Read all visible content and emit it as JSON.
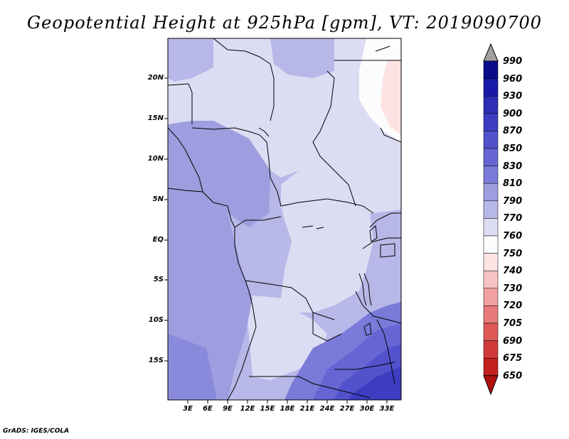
{
  "title": "Geopotential Height at 925hPa [gpm], VT: 2019090700",
  "credit": "GrADS: IGES/COLA",
  "map": {
    "lat_labels": [
      "20N",
      "15N",
      "10N",
      "5N",
      "EQ",
      "5S",
      "10S",
      "15S"
    ],
    "lon_labels": [
      "3E",
      "6E",
      "9E",
      "12E",
      "15E",
      "18E",
      "21E",
      "24E",
      "27E",
      "30E",
      "33E"
    ]
  },
  "colorbar": {
    "levels": [
      "990",
      "960",
      "930",
      "900",
      "870",
      "850",
      "830",
      "810",
      "790",
      "770",
      "760",
      "750",
      "740",
      "730",
      "720",
      "705",
      "690",
      "675",
      "650"
    ],
    "colors": [
      "#0b0b8c",
      "#1a1aa8",
      "#2d2db5",
      "#3d3dc2",
      "#5252cc",
      "#6565d4",
      "#7a7ad9",
      "#9d9ddf",
      "#b7b7e8",
      "#dcdcf3",
      "#fcfcfd",
      "#fde3e3",
      "#f8c3c3",
      "#f1a0a0",
      "#e77a7a",
      "#de5858",
      "#d23a3a",
      "#c42020",
      "#b01010"
    ],
    "top_arrow_color": "#a0a0a0"
  }
}
